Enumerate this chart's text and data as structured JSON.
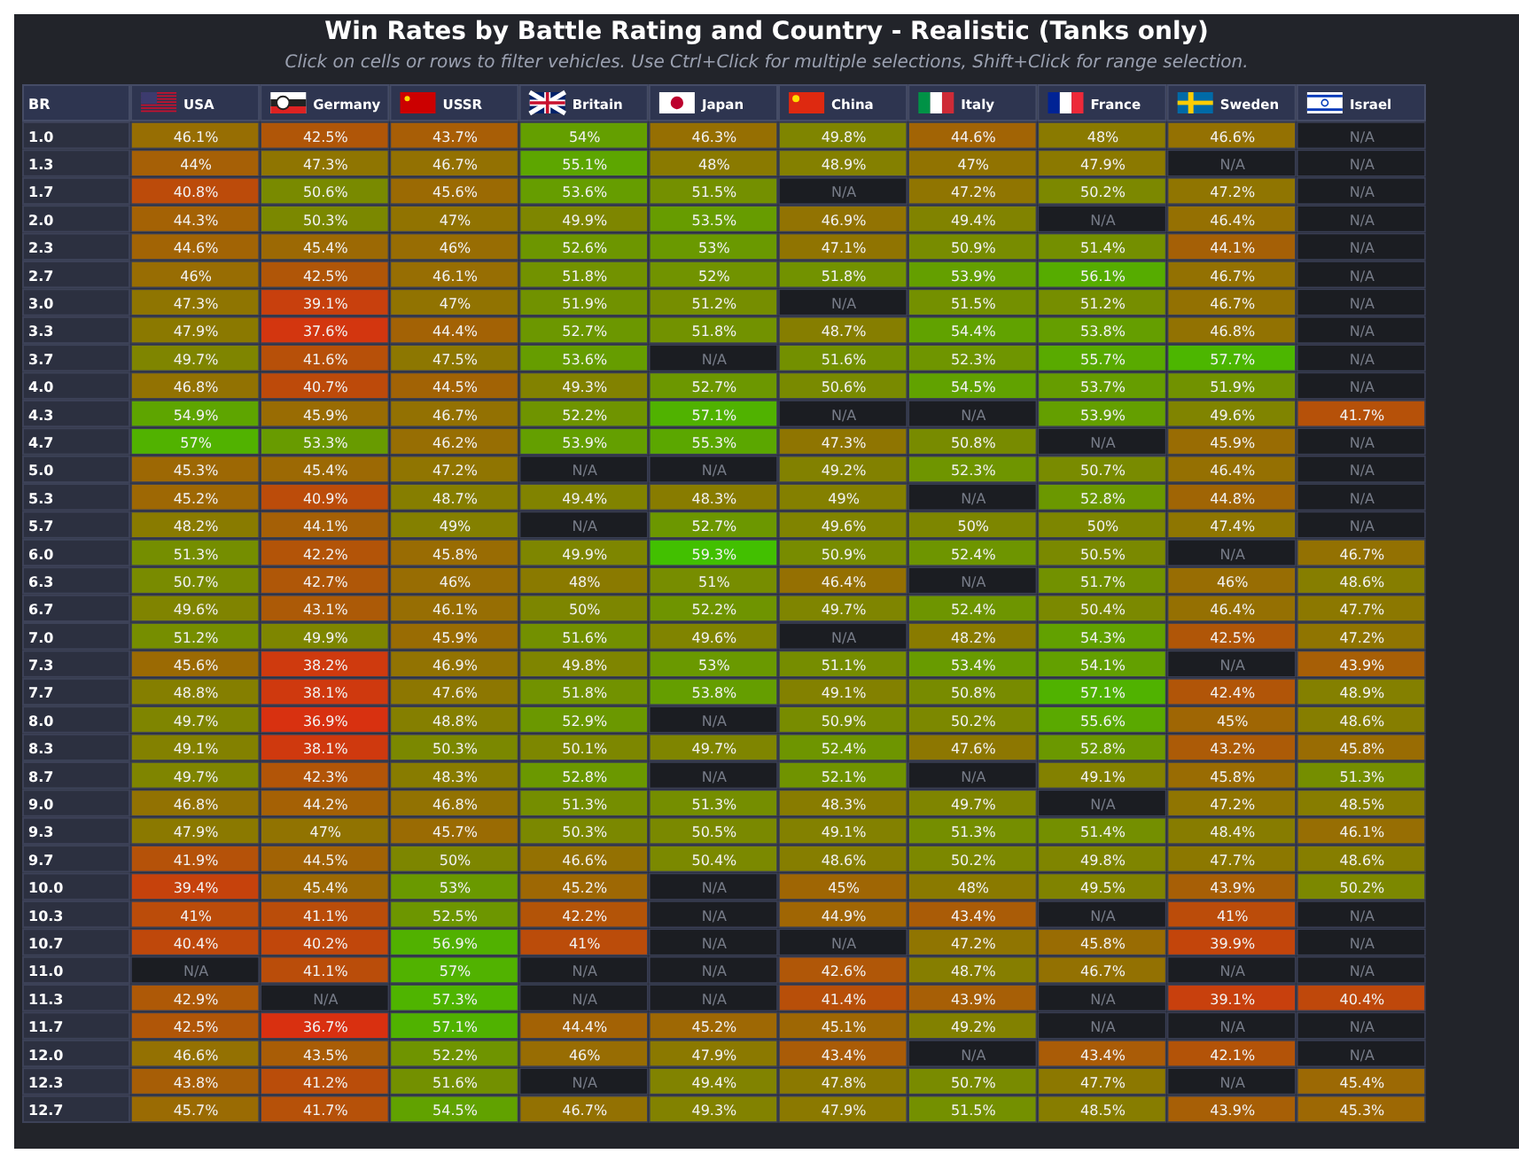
{
  "chart_data": {
    "type": "heatmap",
    "title": "Win Rates by Battle Rating and Country - Realistic (Tanks only)",
    "subtitle": "Click on cells or rows to filter vehicles. Use Ctrl+Click for multiple selections, Shift+Click for range selection.",
    "ylabel": "BR",
    "categories": [
      "USA",
      "Germany",
      "USSR",
      "Britain",
      "Japan",
      "China",
      "Italy",
      "France",
      "Sweden",
      "Israel"
    ],
    "y_categories": [
      "1.0",
      "1.3",
      "1.7",
      "2.0",
      "2.3",
      "2.7",
      "3.0",
      "3.3",
      "3.7",
      "4.0",
      "4.3",
      "4.7",
      "5.0",
      "5.3",
      "5.7",
      "6.0",
      "6.3",
      "6.7",
      "7.0",
      "7.3",
      "7.7",
      "8.0",
      "8.3",
      "8.7",
      "9.0",
      "9.3",
      "9.7",
      "10.0",
      "10.3",
      "10.7",
      "11.0",
      "11.3",
      "11.7",
      "12.0",
      "12.3",
      "12.7"
    ],
    "cells": [
      [
        46.1,
        42.5,
        43.7,
        54,
        46.3,
        49.8,
        44.6,
        48,
        46.6,
        null
      ],
      [
        44,
        47.3,
        46.7,
        55.1,
        48,
        48.9,
        47,
        47.9,
        null,
        null
      ],
      [
        40.8,
        50.6,
        45.6,
        53.6,
        51.5,
        null,
        47.2,
        50.2,
        47.2,
        null
      ],
      [
        44.3,
        50.3,
        47,
        49.9,
        53.5,
        46.9,
        49.4,
        null,
        46.4,
        null
      ],
      [
        44.6,
        45.4,
        46,
        52.6,
        53,
        47.1,
        50.9,
        51.4,
        44.1,
        null
      ],
      [
        46,
        42.5,
        46.1,
        51.8,
        52,
        51.8,
        53.9,
        56.1,
        46.7,
        null
      ],
      [
        47.3,
        39.1,
        47,
        51.9,
        51.2,
        null,
        51.5,
        51.2,
        46.7,
        null
      ],
      [
        47.9,
        37.6,
        44.4,
        52.7,
        51.8,
        48.7,
        54.4,
        53.8,
        46.8,
        null
      ],
      [
        49.7,
        41.6,
        47.5,
        53.6,
        null,
        51.6,
        52.3,
        55.7,
        57.7,
        null
      ],
      [
        46.8,
        40.7,
        44.5,
        49.3,
        52.7,
        50.6,
        54.5,
        53.7,
        51.9,
        null
      ],
      [
        54.9,
        45.9,
        46.7,
        52.2,
        57.1,
        null,
        null,
        53.9,
        49.6,
        41.7
      ],
      [
        57,
        53.3,
        46.2,
        53.9,
        55.3,
        47.3,
        50.8,
        null,
        45.9,
        null
      ],
      [
        45.3,
        45.4,
        47.2,
        null,
        null,
        49.2,
        52.3,
        50.7,
        46.4,
        null
      ],
      [
        45.2,
        40.9,
        48.7,
        49.4,
        48.3,
        49,
        null,
        52.8,
        44.8,
        null
      ],
      [
        48.2,
        44.1,
        49,
        null,
        52.7,
        49.6,
        50,
        50,
        47.4,
        null
      ],
      [
        51.3,
        42.2,
        45.8,
        49.9,
        59.3,
        50.9,
        52.4,
        50.5,
        null,
        46.7
      ],
      [
        50.7,
        42.7,
        46,
        48,
        51,
        46.4,
        null,
        51.7,
        46,
        48.6
      ],
      [
        49.6,
        43.1,
        46.1,
        50,
        52.2,
        49.7,
        52.4,
        50.4,
        46.4,
        47.7
      ],
      [
        51.2,
        49.9,
        45.9,
        51.6,
        49.6,
        null,
        48.2,
        54.3,
        42.5,
        47.2
      ],
      [
        45.6,
        38.2,
        46.9,
        49.8,
        53,
        51.1,
        53.4,
        54.1,
        null,
        43.9
      ],
      [
        48.8,
        38.1,
        47.6,
        51.8,
        53.8,
        49.1,
        50.8,
        57.1,
        42.4,
        48.9
      ],
      [
        49.7,
        36.9,
        48.8,
        52.9,
        null,
        50.9,
        50.2,
        55.6,
        45,
        48.6
      ],
      [
        49.1,
        38.1,
        50.3,
        50.1,
        49.7,
        52.4,
        47.6,
        52.8,
        43.2,
        45.8
      ],
      [
        49.7,
        42.3,
        48.3,
        52.8,
        null,
        52.1,
        null,
        49.1,
        45.8,
        51.3
      ],
      [
        46.8,
        44.2,
        46.8,
        51.3,
        51.3,
        48.3,
        49.7,
        null,
        47.2,
        48.5
      ],
      [
        47.9,
        47,
        45.7,
        50.3,
        50.5,
        49.1,
        51.3,
        51.4,
        48.4,
        46.1
      ],
      [
        41.9,
        44.5,
        50,
        46.6,
        50.4,
        48.6,
        50.2,
        49.8,
        47.7,
        48.6
      ],
      [
        39.4,
        45.4,
        53,
        45.2,
        null,
        45,
        48,
        49.5,
        43.9,
        50.2
      ],
      [
        41,
        41.1,
        52.5,
        42.2,
        null,
        44.9,
        43.4,
        null,
        41,
        null
      ],
      [
        40.4,
        40.2,
        56.9,
        41,
        null,
        null,
        47.2,
        45.8,
        39.9,
        null
      ],
      [
        null,
        41.1,
        57,
        null,
        null,
        42.6,
        48.7,
        46.7,
        null,
        null
      ],
      [
        42.9,
        null,
        57.3,
        null,
        null,
        41.4,
        43.9,
        null,
        39.1,
        40.4
      ],
      [
        42.5,
        36.7,
        57.1,
        44.4,
        45.2,
        45.1,
        49.2,
        null,
        null,
        null
      ],
      [
        46.6,
        43.5,
        52.2,
        46,
        47.9,
        43.4,
        null,
        43.4,
        42.1,
        null
      ],
      [
        43.8,
        41.2,
        51.6,
        null,
        49.4,
        47.8,
        50.7,
        47.7,
        null,
        45.4
      ],
      [
        45.7,
        41.7,
        54.5,
        46.7,
        49.3,
        47.9,
        51.5,
        48.5,
        43.9,
        45.3
      ]
    ],
    "cell_labels": [
      [
        "46.1%",
        "42.5%",
        "43.7%",
        "54%",
        "46.3%",
        "49.8%",
        "44.6%",
        "48%",
        "46.6%",
        "N/A"
      ],
      [
        "44%",
        "47.3%",
        "46.7%",
        "55.1%",
        "48%",
        "48.9%",
        "47%",
        "47.9%",
        "N/A",
        "N/A"
      ],
      [
        "40.8%",
        "50.6%",
        "45.6%",
        "53.6%",
        "51.5%",
        "N/A",
        "47.2%",
        "50.2%",
        "47.2%",
        "N/A"
      ],
      [
        "44.3%",
        "50.3%",
        "47%",
        "49.9%",
        "53.5%",
        "46.9%",
        "49.4%",
        "N/A",
        "46.4%",
        "N/A"
      ],
      [
        "44.6%",
        "45.4%",
        "46%",
        "52.6%",
        "53%",
        "47.1%",
        "50.9%",
        "51.4%",
        "44.1%",
        "N/A"
      ],
      [
        "46%",
        "42.5%",
        "46.1%",
        "51.8%",
        "52%",
        "51.8%",
        "53.9%",
        "56.1%",
        "46.7%",
        "N/A"
      ],
      [
        "47.3%",
        "39.1%",
        "47%",
        "51.9%",
        "51.2%",
        "N/A",
        "51.5%",
        "51.2%",
        "46.7%",
        "N/A"
      ],
      [
        "47.9%",
        "37.6%",
        "44.4%",
        "52.7%",
        "51.8%",
        "48.7%",
        "54.4%",
        "53.8%",
        "46.8%",
        "N/A"
      ],
      [
        "49.7%",
        "41.6%",
        "47.5%",
        "53.6%",
        "N/A",
        "51.6%",
        "52.3%",
        "55.7%",
        "57.7%",
        "N/A"
      ],
      [
        "46.8%",
        "40.7%",
        "44.5%",
        "49.3%",
        "52.7%",
        "50.6%",
        "54.5%",
        "53.7%",
        "51.9%",
        "N/A"
      ],
      [
        "54.9%",
        "45.9%",
        "46.7%",
        "52.2%",
        "57.1%",
        "N/A",
        "N/A",
        "53.9%",
        "49.6%",
        "41.7%"
      ],
      [
        "57%",
        "53.3%",
        "46.2%",
        "53.9%",
        "55.3%",
        "47.3%",
        "50.8%",
        "N/A",
        "45.9%",
        "N/A"
      ],
      [
        "45.3%",
        "45.4%",
        "47.2%",
        "N/A",
        "N/A",
        "49.2%",
        "52.3%",
        "50.7%",
        "46.4%",
        "N/A"
      ],
      [
        "45.2%",
        "40.9%",
        "48.7%",
        "49.4%",
        "48.3%",
        "49%",
        "N/A",
        "52.8%",
        "44.8%",
        "N/A"
      ],
      [
        "48.2%",
        "44.1%",
        "49%",
        "N/A",
        "52.7%",
        "49.6%",
        "50%",
        "50%",
        "47.4%",
        "N/A"
      ],
      [
        "51.3%",
        "42.2%",
        "45.8%",
        "49.9%",
        "59.3%",
        "50.9%",
        "52.4%",
        "50.5%",
        "N/A",
        "46.7%"
      ],
      [
        "50.7%",
        "42.7%",
        "46%",
        "48%",
        "51%",
        "46.4%",
        "N/A",
        "51.7%",
        "46%",
        "48.6%"
      ],
      [
        "49.6%",
        "43.1%",
        "46.1%",
        "50%",
        "52.2%",
        "49.7%",
        "52.4%",
        "50.4%",
        "46.4%",
        "47.7%"
      ],
      [
        "51.2%",
        "49.9%",
        "45.9%",
        "51.6%",
        "49.6%",
        "N/A",
        "48.2%",
        "54.3%",
        "42.5%",
        "47.2%"
      ],
      [
        "45.6%",
        "38.2%",
        "46.9%",
        "49.8%",
        "53%",
        "51.1%",
        "53.4%",
        "54.1%",
        "N/A",
        "43.9%"
      ],
      [
        "48.8%",
        "38.1%",
        "47.6%",
        "51.8%",
        "53.8%",
        "49.1%",
        "50.8%",
        "57.1%",
        "42.4%",
        "48.9%"
      ],
      [
        "49.7%",
        "36.9%",
        "48.8%",
        "52.9%",
        "N/A",
        "50.9%",
        "50.2%",
        "55.6%",
        "45%",
        "48.6%"
      ],
      [
        "49.1%",
        "38.1%",
        "50.3%",
        "50.1%",
        "49.7%",
        "52.4%",
        "47.6%",
        "52.8%",
        "43.2%",
        "45.8%"
      ],
      [
        "49.7%",
        "42.3%",
        "48.3%",
        "52.8%",
        "N/A",
        "52.1%",
        "N/A",
        "49.1%",
        "45.8%",
        "51.3%"
      ],
      [
        "46.8%",
        "44.2%",
        "46.8%",
        "51.3%",
        "51.3%",
        "48.3%",
        "49.7%",
        "N/A",
        "47.2%",
        "48.5%"
      ],
      [
        "47.9%",
        "47%",
        "45.7%",
        "50.3%",
        "50.5%",
        "49.1%",
        "51.3%",
        "51.4%",
        "48.4%",
        "46.1%"
      ],
      [
        "41.9%",
        "44.5%",
        "50%",
        "46.6%",
        "50.4%",
        "48.6%",
        "50.2%",
        "49.8%",
        "47.7%",
        "48.6%"
      ],
      [
        "39.4%",
        "45.4%",
        "53%",
        "45.2%",
        "N/A",
        "45%",
        "48%",
        "49.5%",
        "43.9%",
        "50.2%"
      ],
      [
        "41%",
        "41.1%",
        "52.5%",
        "42.2%",
        "N/A",
        "44.9%",
        "43.4%",
        "N/A",
        "41%",
        "N/A"
      ],
      [
        "40.4%",
        "40.2%",
        "56.9%",
        "41%",
        "N/A",
        "N/A",
        "47.2%",
        "45.8%",
        "39.9%",
        "N/A"
      ],
      [
        "N/A",
        "41.1%",
        "57%",
        "N/A",
        "N/A",
        "42.6%",
        "48.7%",
        "46.7%",
        "N/A",
        "N/A"
      ],
      [
        "42.9%",
        "N/A",
        "57.3%",
        "N/A",
        "N/A",
        "41.4%",
        "43.9%",
        "N/A",
        "39.1%",
        "40.4%"
      ],
      [
        "42.5%",
        "36.7%",
        "57.1%",
        "44.4%",
        "45.2%",
        "45.1%",
        "49.2%",
        "N/A",
        "N/A",
        "N/A"
      ],
      [
        "46.6%",
        "43.5%",
        "52.2%",
        "46%",
        "47.9%",
        "43.4%",
        "N/A",
        "43.4%",
        "42.1%",
        "N/A"
      ],
      [
        "43.8%",
        "41.2%",
        "51.6%",
        "N/A",
        "49.4%",
        "47.8%",
        "50.7%",
        "47.7%",
        "N/A",
        "45.4%"
      ],
      [
        "45.7%",
        "41.7%",
        "54.5%",
        "46.7%",
        "49.3%",
        "47.9%",
        "51.5%",
        "48.5%",
        "43.9%",
        "45.3%"
      ]
    ]
  }
}
